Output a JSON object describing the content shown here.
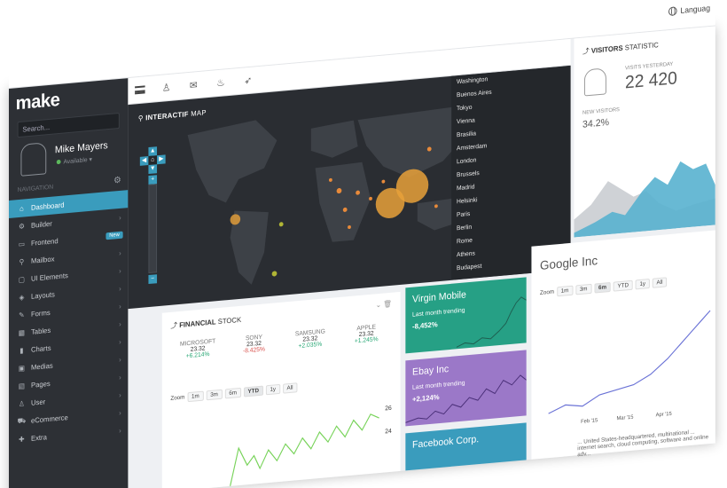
{
  "header": {
    "language_label": "Languag"
  },
  "sidebar": {
    "logo": "make",
    "search_placeholder": "Search...",
    "user": {
      "name": "Mike Mayers",
      "status": "Available"
    },
    "nav_heading": "NAVIGATION",
    "items": [
      {
        "label": "Dashboard",
        "icon": "home-icon",
        "glyph": "⌂",
        "active": true
      },
      {
        "label": "Builder",
        "icon": "builder-icon",
        "glyph": "⚙"
      },
      {
        "label": "Frontend",
        "icon": "monitor-icon",
        "glyph": "▭",
        "badge": "New"
      },
      {
        "label": "Mailbox",
        "icon": "pin-icon",
        "glyph": "⚲"
      },
      {
        "label": "UI Elements",
        "icon": "screen-icon",
        "glyph": "▢"
      },
      {
        "label": "Layouts",
        "icon": "stack-icon",
        "glyph": "◈"
      },
      {
        "label": "Forms",
        "icon": "forms-icon",
        "glyph": "✎"
      },
      {
        "label": "Tables",
        "icon": "table-icon",
        "glyph": "▦"
      },
      {
        "label": "Charts",
        "icon": "bar-chart-icon",
        "glyph": "▮"
      },
      {
        "label": "Medias",
        "icon": "media-icon",
        "glyph": "▣"
      },
      {
        "label": "Pages",
        "icon": "pages-icon",
        "glyph": "▤"
      },
      {
        "label": "User",
        "icon": "user-icon",
        "glyph": "♙"
      },
      {
        "label": "eCommerce",
        "icon": "cart-icon",
        "glyph": "⛟"
      },
      {
        "label": "Extra",
        "icon": "extra-icon",
        "glyph": "✚"
      }
    ]
  },
  "toolbar": {
    "icons": [
      "user-icon",
      "envelope-icon",
      "fire-icon",
      "rocket-icon"
    ]
  },
  "map": {
    "title_bold": "INTERACTIF",
    "title_rest": " MAP",
    "cities": [
      "Washington",
      "Buenos Aires",
      "Tokyo",
      "Vienna",
      "Brasilia",
      "Amsterdam",
      "London",
      "Brussels",
      "Madrid",
      "Helsinki",
      "Paris",
      "Berlin",
      "Rome",
      "Athens",
      "Budapest"
    ]
  },
  "visitors": {
    "title_bold": "VISITORS",
    "title_rest": " STATISTIC",
    "yesterday_label": "VISITS YESTERDAY",
    "yesterday_value": "22 420",
    "new_label": "NEW VISITORS",
    "new_value": "34.2%"
  },
  "financial": {
    "title_bold": "FINANCIAL",
    "title_rest": " STOCK",
    "stocks": [
      {
        "name": "MICROSOFT",
        "value": "23.32",
        "change": "+6.214%",
        "dir": "up"
      },
      {
        "name": "SONY",
        "value": "23.32",
        "change": "-8.425%",
        "dir": "down"
      },
      {
        "name": "SAMSUNG",
        "value": "23.32",
        "change": "+2.035%",
        "dir": "up"
      },
      {
        "name": "APPLE",
        "value": "23.32",
        "change": "+1.245%",
        "dir": "up"
      }
    ],
    "zoom_label": "Zoom",
    "zoom_options": [
      "1m",
      "3m",
      "6m",
      "YTD",
      "1y",
      "All"
    ],
    "zoom_selected": "YTD",
    "y_ticks": [
      "26",
      "24"
    ]
  },
  "tiles": [
    {
      "title": "Virgin Mobile",
      "subtitle": "Last month trending",
      "value": "-8,452%",
      "color": "#26a085"
    },
    {
      "title": "Ebay Inc",
      "subtitle": "Last month trending",
      "value": "+2,124%",
      "color": "#9b78c8"
    },
    {
      "title": "Facebook Corp.",
      "color": "#3a9cbd"
    }
  ],
  "google": {
    "title": "Google Inc",
    "zoom_label": "Zoom",
    "zoom_options": [
      "1m",
      "3m",
      "6m",
      "YTD",
      "1y",
      "All"
    ],
    "zoom_selected": "6m",
    "x_ticks": [
      "Feb '15",
      "Mar '15",
      "Apr '15"
    ],
    "description": "... United States-headquartered, multinational ... internet search, cloud computing, software and online adv..."
  }
}
